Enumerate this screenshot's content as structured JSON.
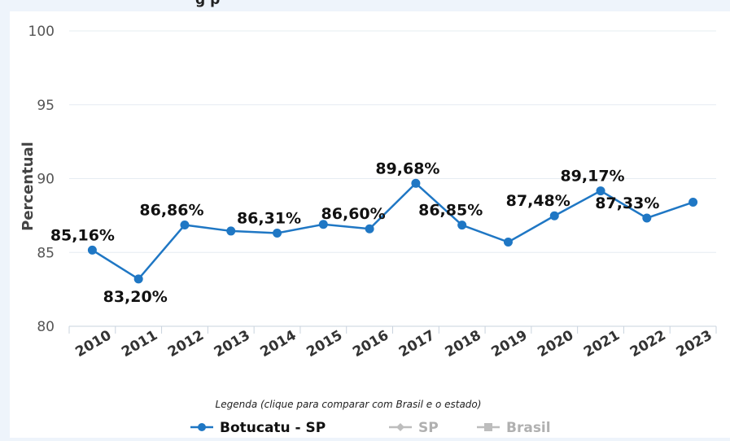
{
  "header": {
    "title_fragment": "g                                                        p"
  },
  "chart_data": {
    "type": "line",
    "title": "",
    "xlabel": "",
    "ylabel": "Percentual",
    "ylim": [
      80,
      100
    ],
    "yticks": [
      80,
      85,
      90,
      95,
      100
    ],
    "grid": true,
    "categories": [
      "2010",
      "2011",
      "2012",
      "2013",
      "2014",
      "2015",
      "2016",
      "2017",
      "2018",
      "2019",
      "2020",
      "2021",
      "2022",
      "2023"
    ],
    "series": [
      {
        "name": "Botucatu - SP",
        "color": "#1f77c4",
        "values": [
          85.16,
          83.2,
          86.86,
          86.45,
          86.31,
          86.9,
          86.6,
          89.68,
          86.85,
          85.7,
          87.48,
          89.17,
          87.33,
          88.4
        ],
        "data_labels": [
          "85,16%",
          "83,20%",
          "86,86%",
          "",
          "86,31%",
          "",
          "86,60%",
          "89,68%",
          "86,85%",
          "",
          "87,48%",
          "89,17%",
          "87,33%",
          ""
        ]
      }
    ],
    "legend": {
      "title": "Legenda (clique para comparar com Brasil e o estado)",
      "placement": "bottom",
      "items": [
        {
          "label": "Botucatu - SP",
          "color": "#1f77c4",
          "marker": "circle",
          "active": true
        },
        {
          "label": "SP",
          "color": "#bdbdbd",
          "marker": "diamond",
          "active": false
        },
        {
          "label": "Brasil",
          "color": "#bdbdbd",
          "marker": "square",
          "active": false
        }
      ]
    }
  }
}
